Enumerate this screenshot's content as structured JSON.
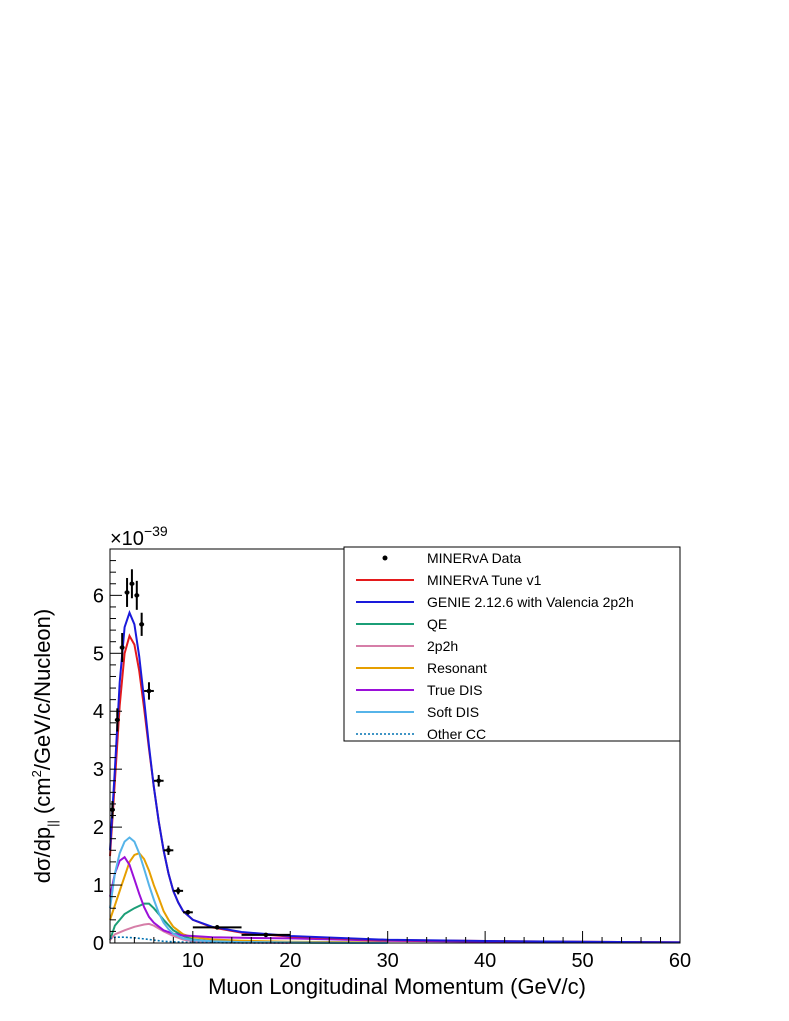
{
  "chart_data": {
    "type": "line",
    "title": "",
    "xlabel": "Muon Longitudinal Momentum (GeV/c)",
    "ylabel_main": "dσ/dp",
    "ylabel_sub": "||",
    "ylabel_unit_pre": "(cm",
    "ylabel_unit_sup": "2",
    "ylabel_unit_post": "/GeV/c/Nucleon)",
    "y_multiplier_base": "×10",
    "y_multiplier_exp": "−39",
    "xlim": [
      1.5,
      60
    ],
    "ylim": [
      0,
      6.8
    ],
    "x_ticks": [
      10,
      20,
      30,
      40,
      50,
      60
    ],
    "y_ticks": [
      0,
      1,
      2,
      3,
      4,
      5,
      6
    ],
    "grid": false,
    "legend_position": "top-right",
    "data": {
      "name": "MINERvA Data",
      "points": [
        {
          "x": 1.75,
          "y": 2.3,
          "xerr": 0.25,
          "yerr": 0.15
        },
        {
          "x": 2.25,
          "y": 3.85,
          "xerr": 0.25,
          "yerr": 0.2
        },
        {
          "x": 2.75,
          "y": 5.1,
          "xerr": 0.25,
          "yerr": 0.25
        },
        {
          "x": 3.25,
          "y": 6.05,
          "xerr": 0.25,
          "yerr": 0.25
        },
        {
          "x": 3.75,
          "y": 6.2,
          "xerr": 0.25,
          "yerr": 0.25
        },
        {
          "x": 4.25,
          "y": 6.0,
          "xerr": 0.25,
          "yerr": 0.25
        },
        {
          "x": 4.75,
          "y": 5.5,
          "xerr": 0.25,
          "yerr": 0.2
        },
        {
          "x": 5.5,
          "y": 4.35,
          "xerr": 0.5,
          "yerr": 0.15
        },
        {
          "x": 6.5,
          "y": 2.8,
          "xerr": 0.5,
          "yerr": 0.1
        },
        {
          "x": 7.5,
          "y": 1.6,
          "xerr": 0.5,
          "yerr": 0.08
        },
        {
          "x": 8.5,
          "y": 0.9,
          "xerr": 0.5,
          "yerr": 0.06
        },
        {
          "x": 9.5,
          "y": 0.53,
          "xerr": 0.5,
          "yerr": 0.04
        },
        {
          "x": 12.5,
          "y": 0.27,
          "xerr": 2.5,
          "yerr": 0.03
        },
        {
          "x": 17.5,
          "y": 0.14,
          "xerr": 2.5,
          "yerr": 0.02
        }
      ]
    },
    "series": [
      {
        "name": "MINERvA Tune v1",
        "color": "#e41a1c",
        "dash": false,
        "x": [
          1.5,
          2,
          2.5,
          3,
          3.5,
          4,
          4.5,
          5,
          5.5,
          6,
          6.5,
          7,
          7.5,
          8,
          8.5,
          9,
          10,
          12,
          15,
          20,
          30,
          40,
          50,
          60
        ],
        "y": [
          1.5,
          2.8,
          4.1,
          5.0,
          5.3,
          5.15,
          4.7,
          4.05,
          3.35,
          2.7,
          2.1,
          1.6,
          1.2,
          0.9,
          0.7,
          0.55,
          0.4,
          0.27,
          0.18,
          0.11,
          0.05,
          0.035,
          0.02,
          0.01
        ]
      },
      {
        "name": "GENIE 2.12.6 with Valencia 2p2h",
        "color": "#1a1adb",
        "dash": false,
        "x": [
          1.5,
          2,
          2.5,
          3,
          3.5,
          4,
          4.5,
          5,
          5.5,
          6,
          6.5,
          7,
          7.5,
          8,
          8.5,
          9,
          10,
          12,
          15,
          20,
          30,
          40,
          50,
          60
        ],
        "y": [
          1.6,
          3.0,
          4.5,
          5.45,
          5.7,
          5.5,
          4.95,
          4.2,
          3.4,
          2.7,
          2.1,
          1.6,
          1.2,
          0.9,
          0.7,
          0.55,
          0.4,
          0.28,
          0.19,
          0.12,
          0.055,
          0.035,
          0.02,
          0.01
        ]
      },
      {
        "name": "QE",
        "color": "#1b9e77",
        "dash": false,
        "x": [
          1.5,
          2,
          3,
          4,
          5,
          5.5,
          6,
          7,
          8,
          9,
          10,
          12,
          15,
          20,
          30
        ],
        "y": [
          0.05,
          0.3,
          0.5,
          0.6,
          0.68,
          0.68,
          0.6,
          0.4,
          0.22,
          0.12,
          0.06,
          0.03,
          0.015,
          0.005,
          0
        ]
      },
      {
        "name": "2p2h",
        "color": "#d67ea8",
        "dash": false,
        "x": [
          1.5,
          2,
          3,
          4,
          5,
          5.5,
          6,
          7,
          8,
          9,
          10,
          12,
          15,
          20
        ],
        "y": [
          0.05,
          0.15,
          0.22,
          0.28,
          0.32,
          0.33,
          0.3,
          0.2,
          0.12,
          0.06,
          0.03,
          0.01,
          0.005,
          0
        ]
      },
      {
        "name": "Resonant",
        "color": "#e69f00",
        "dash": false,
        "x": [
          1.5,
          2,
          2.5,
          3,
          3.5,
          4,
          4.5,
          5,
          5.5,
          6,
          6.5,
          7,
          7.5,
          8,
          9,
          10,
          12,
          15,
          20,
          30
        ],
        "y": [
          0.4,
          0.65,
          0.9,
          1.15,
          1.4,
          1.52,
          1.55,
          1.45,
          1.25,
          1.0,
          0.78,
          0.55,
          0.4,
          0.28,
          0.15,
          0.1,
          0.06,
          0.04,
          0.02,
          0.01
        ]
      },
      {
        "name": "True DIS",
        "color": "#9b10d9",
        "dash": false,
        "x": [
          1.5,
          2,
          2.5,
          3,
          3.5,
          4,
          4.5,
          5,
          5.5,
          6,
          7,
          8,
          9,
          10,
          12,
          15,
          20,
          30,
          40,
          50,
          60
        ],
        "y": [
          0.8,
          1.2,
          1.42,
          1.48,
          1.35,
          1.1,
          0.85,
          0.62,
          0.45,
          0.35,
          0.22,
          0.16,
          0.13,
          0.12,
          0.1,
          0.09,
          0.08,
          0.04,
          0.025,
          0.015,
          0.01
        ]
      },
      {
        "name": "Soft DIS",
        "color": "#56b4e9",
        "dash": false,
        "x": [
          1.5,
          2,
          2.5,
          3,
          3.5,
          4,
          4.5,
          5,
          5.5,
          6,
          6.5,
          7,
          7.5,
          8,
          9,
          10,
          12,
          15,
          20,
          30
        ],
        "y": [
          0.6,
          1.2,
          1.55,
          1.75,
          1.82,
          1.75,
          1.55,
          1.28,
          1.0,
          0.75,
          0.52,
          0.35,
          0.24,
          0.16,
          0.08,
          0.05,
          0.03,
          0.015,
          0.01,
          0
        ]
      },
      {
        "name": "Other CC",
        "color": "#0072b2",
        "dash": true,
        "x": [
          1.5,
          2,
          3,
          4,
          5,
          6,
          7,
          8,
          9,
          10,
          12,
          15,
          20
        ],
        "y": [
          0.08,
          0.1,
          0.1,
          0.09,
          0.07,
          0.05,
          0.03,
          0.02,
          0.015,
          0.01,
          0.005,
          0.002,
          0
        ]
      }
    ]
  }
}
